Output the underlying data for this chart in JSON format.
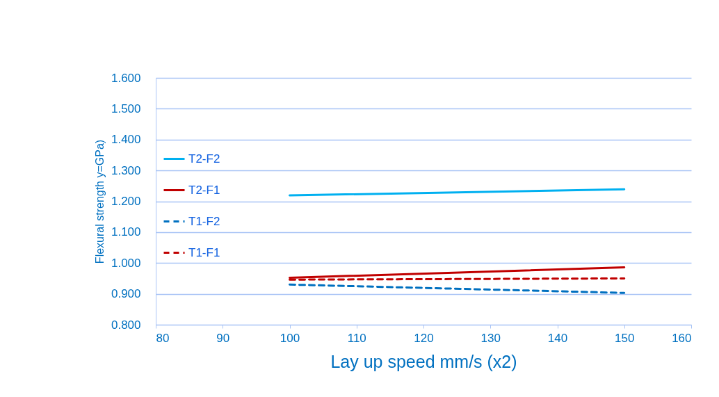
{
  "chart_data": {
    "type": "line",
    "xlabel": "Lay up speed mm/s (x2)",
    "ylabel": "Flexural strength y=GPa)",
    "x": [
      100,
      150
    ],
    "series": [
      {
        "name": "T2-F2",
        "color": "#00b0f0",
        "line_style": "solid",
        "values": [
          1.219,
          1.239
        ]
      },
      {
        "name": "T2-F1",
        "color": "#c00000",
        "line_style": "solid",
        "values": [
          0.952,
          0.986
        ]
      },
      {
        "name": "T1-F2",
        "color": "#0070c0",
        "line_style": "dashed",
        "values": [
          0.93,
          0.903
        ]
      },
      {
        "name": "T1-F1",
        "color": "#c00000",
        "line_style": "dashed",
        "values": [
          0.946,
          0.95
        ]
      }
    ],
    "xlim": [
      80,
      160
    ],
    "xticks": [
      80,
      90,
      100,
      110,
      120,
      130,
      140,
      150,
      160
    ],
    "ylim": [
      0.8,
      1.6
    ],
    "yticks": [
      {
        "value": 0.8,
        "label": "0.800"
      },
      {
        "value": 0.9,
        "label": "0.900"
      },
      {
        "value": 1.0,
        "label": "1.000"
      },
      {
        "value": 1.1,
        "label": "1.100"
      },
      {
        "value": 1.2,
        "label": "1.200"
      },
      {
        "value": 1.3,
        "label": "1.300"
      },
      {
        "value": 1.4,
        "label": "1.400"
      },
      {
        "value": 1.5,
        "label": "1.500"
      },
      {
        "value": 1.6,
        "label": "1.600"
      }
    ],
    "grid": "y",
    "legend": "left",
    "marker": "none"
  }
}
